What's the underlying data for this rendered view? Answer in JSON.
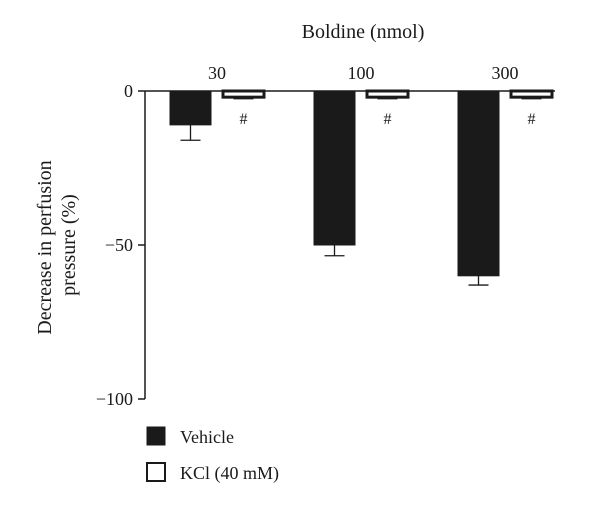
{
  "chart_data": {
    "type": "bar",
    "title": "Boldine (nmol)",
    "ylabel": "Decrease in perfusion pressure (%)",
    "ylabel_lines": [
      "Decrease in perfusion",
      "pressure (%)"
    ],
    "categories": [
      "30",
      "100",
      "300"
    ],
    "ylim": [
      -100,
      0
    ],
    "yticks": [
      "0",
      "−50",
      "−100"
    ],
    "ytick_values": [
      0,
      -50,
      -100
    ],
    "series": [
      {
        "name": "Vehicle",
        "color": "#1a1a1a",
        "fill": "solid",
        "values": [
          -11,
          -50,
          -60
        ],
        "errors": [
          5,
          3.5,
          3
        ]
      },
      {
        "name": "KCl (40 mM)",
        "color": "#1a1a1a",
        "fill": "hollow-with-dark-edge",
        "values": [
          -2,
          -2,
          -2
        ],
        "errors": [
          0.5,
          0.5,
          0.5
        ]
      }
    ],
    "annotations": [
      "#",
      "#",
      "#"
    ],
    "legend_position": "bottom-left",
    "grid": false
  }
}
